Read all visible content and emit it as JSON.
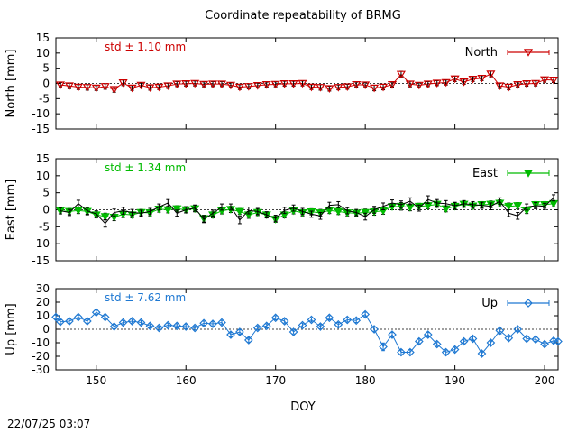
{
  "title": "Coordinate repeatability of BRMG",
  "timestamp": "22/07/25 03:07",
  "xlabel": "DOY",
  "xlim": [
    145.5,
    201.5
  ],
  "xticks": [
    150,
    160,
    170,
    180,
    190,
    200
  ],
  "colors": {
    "north": "#cc0000",
    "east": "#00bb00",
    "up": "#1e78d2",
    "bars_ne": "#000000",
    "bars_up": "#1e78d2"
  },
  "chart_data": [
    {
      "type": "line",
      "name": "North",
      "ylabel": "North [mm]",
      "ylim": [
        -15,
        15
      ],
      "yticks": [
        -15,
        -10,
        -5,
        0,
        5,
        10,
        15
      ],
      "std_label": "std ± 1.10 mm",
      "legend": "North",
      "legend_position": "top-right",
      "marker": "triangle-down-open",
      "series": [
        {
          "x": [
            146,
            147,
            148,
            149,
            150,
            151,
            152,
            153,
            154,
            155,
            156,
            157,
            158,
            159,
            160,
            161,
            162,
            163,
            164,
            165,
            166,
            167,
            168,
            169,
            170,
            171,
            172,
            173,
            174,
            175,
            176,
            177,
            178,
            179,
            180,
            181,
            182,
            183,
            184,
            185,
            186,
            187,
            188,
            189,
            190,
            191,
            192,
            193,
            194,
            195,
            196,
            197,
            198,
            199,
            200,
            201
          ],
          "y": [
            -0.5,
            -0.8,
            -1.2,
            -1.3,
            -1.5,
            -1.0,
            -2.0,
            0.2,
            -1.5,
            -0.6,
            -1.4,
            -1.2,
            -0.8,
            -0.2,
            -0.1,
            0.0,
            -0.3,
            -0.2,
            -0.2,
            -0.6,
            -1.2,
            -1.0,
            -0.7,
            -0.4,
            -0.3,
            -0.1,
            -0.1,
            0.0,
            -1.2,
            -1.3,
            -1.7,
            -1.3,
            -1.1,
            -0.4,
            -0.5,
            -1.5,
            -1.2,
            -0.4,
            3.0,
            -0.2,
            -0.6,
            -0.2,
            0.1,
            0.3,
            1.5,
            0.5,
            1.4,
            1.7,
            3.1,
            -0.8,
            -1.2,
            -0.4,
            -0.1,
            0.0,
            1.2,
            1.1
          ],
          "err": [
            0.8,
            0.9,
            0.8,
            0.9,
            0.8,
            0.9,
            0.9,
            0.9,
            0.8,
            0.9,
            0.8,
            0.8,
            0.8,
            0.8,
            0.8,
            0.8,
            0.8,
            0.8,
            0.8,
            0.8,
            0.8,
            0.8,
            0.8,
            0.8,
            0.8,
            0.8,
            0.8,
            0.8,
            0.8,
            0.9,
            0.8,
            0.8,
            0.8,
            0.8,
            0.8,
            0.9,
            0.9,
            0.8,
            1.0,
            0.9,
            0.8,
            0.8,
            0.8,
            0.8,
            0.9,
            0.8,
            0.8,
            0.8,
            0.9,
            0.9,
            0.9,
            0.8,
            0.8,
            0.8,
            0.8,
            0.8
          ]
        }
      ]
    },
    {
      "type": "line",
      "name": "East",
      "ylabel": "East [mm]",
      "ylim": [
        -15,
        15
      ],
      "yticks": [
        -15,
        -10,
        -5,
        0,
        5,
        10,
        15
      ],
      "std_label": "std ± 1.34 mm",
      "legend": "East",
      "legend_position": "top-right",
      "marker": "triangle-down-filled",
      "series": [
        {
          "x": [
            146,
            147,
            148,
            149,
            150,
            151,
            152,
            153,
            154,
            155,
            156,
            157,
            158,
            159,
            160,
            161,
            162,
            163,
            164,
            165,
            166,
            167,
            168,
            169,
            170,
            171,
            172,
            173,
            174,
            175,
            176,
            177,
            178,
            179,
            180,
            181,
            182,
            183,
            184,
            185,
            186,
            187,
            188,
            189,
            190,
            191,
            192,
            193,
            194,
            195,
            196,
            197,
            198,
            199,
            200,
            201
          ],
          "y": [
            -0.3,
            -0.5,
            -0.2,
            -0.5,
            -1.5,
            -2.0,
            -2.2,
            -1.3,
            -1.5,
            -0.8,
            -0.9,
            0.2,
            0.0,
            0.3,
            0.0,
            0.3,
            -2.6,
            -1.5,
            -0.3,
            0.1,
            -0.5,
            -1.5,
            -0.8,
            -1.5,
            -2.8,
            -1.5,
            -0.3,
            -0.9,
            -0.6,
            -0.9,
            -0.2,
            -0.5,
            -0.9,
            -1.0,
            -0.8,
            -0.6,
            -0.3,
            0.9,
            1.0,
            0.7,
            1.0,
            1.2,
            1.6,
            0.3,
            1.0,
            1.6,
            1.1,
            1.5,
            1.6,
            1.9,
            1.0,
            1.2,
            -0.2,
            1.5,
            1.5,
            1.8
          ],
          "err": [
            0.9,
            0.9,
            0.9,
            1.0,
            0.9,
            1.0,
            1.0,
            1.0,
            0.9,
            0.9,
            0.9,
            0.9,
            0.9,
            0.9,
            0.9,
            0.9,
            1.0,
            0.9,
            0.9,
            0.9,
            0.9,
            1.0,
            0.9,
            0.9,
            0.9,
            0.9,
            0.9,
            0.9,
            0.9,
            1.0,
            0.9,
            0.9,
            0.9,
            0.9,
            1.0,
            1.0,
            1.0,
            0.9,
            1.1,
            1.0,
            0.9,
            0.9,
            0.9,
            0.9,
            1.0,
            0.9,
            0.9,
            0.9,
            1.0,
            1.0,
            1.0,
            0.9,
            0.9,
            0.9,
            0.9,
            0.9
          ]
        },
        {
          "x": [
            146,
            147,
            148,
            149,
            150,
            151,
            152,
            153,
            154,
            155,
            156,
            157,
            158,
            159,
            160,
            161,
            162,
            163,
            164,
            165,
            166,
            167,
            168,
            169,
            170,
            171,
            172,
            173,
            174,
            175,
            176,
            177,
            178,
            179,
            180,
            181,
            182,
            183,
            184,
            185,
            186,
            187,
            188,
            189,
            190,
            191,
            192,
            193,
            194,
            195,
            196,
            197,
            198,
            199,
            200,
            201
          ],
          "y": [
            -0.3,
            -0.8,
            1.8,
            -0.3,
            -1.2,
            -4.0,
            -0.8,
            -0.3,
            -0.8,
            -1.0,
            -0.5,
            0.8,
            2.0,
            -1.0,
            0.0,
            0.5,
            -2.8,
            -1.0,
            0.8,
            0.8,
            -3.0,
            -0.2,
            -0.5,
            -1.5,
            -2.5,
            -0.2,
            0.5,
            -0.5,
            -1.3,
            -1.8,
            1.3,
            1.5,
            -0.3,
            -0.8,
            -2.0,
            0.0,
            1.0,
            2.0,
            1.5,
            2.5,
            0.5,
            3.0,
            2.0,
            1.8,
            1.2,
            1.8,
            1.5,
            1.3,
            1.0,
            2.5,
            -1.0,
            -1.8,
            0.8,
            1.2,
            1.0,
            3.5
          ],
          "err": [
            0.9,
            0.9,
            1.0,
            1.0,
            0.9,
            1.1,
            1.0,
            1.0,
            0.9,
            0.9,
            0.9,
            0.9,
            1.0,
            0.9,
            0.9,
            0.9,
            1.0,
            0.9,
            0.9,
            0.9,
            1.1,
            1.0,
            0.9,
            0.9,
            0.9,
            0.9,
            0.9,
            0.9,
            0.9,
            1.0,
            0.9,
            0.9,
            0.9,
            0.9,
            1.0,
            1.0,
            1.0,
            0.9,
            1.1,
            1.0,
            0.9,
            1.1,
            1.0,
            0.9,
            1.0,
            0.9,
            0.9,
            0.9,
            1.0,
            1.0,
            1.0,
            1.0,
            0.9,
            0.9,
            0.9,
            0.9
          ]
        }
      ]
    },
    {
      "type": "line",
      "name": "Up",
      "ylabel": "Up [mm]",
      "ylim": [
        -30,
        30
      ],
      "yticks": [
        -30,
        -20,
        -10,
        0,
        10,
        20,
        30
      ],
      "std_label": "std ± 7.62 mm",
      "legend": "Up",
      "legend_position": "top-right",
      "marker": "diamond-open",
      "series": [
        {
          "x": [
            145.5,
            146,
            147,
            148,
            149,
            150,
            151,
            152,
            153,
            154,
            155,
            156,
            157,
            158,
            159,
            160,
            161,
            162,
            163,
            164,
            165,
            166,
            167,
            168,
            169,
            170,
            171,
            172,
            173,
            174,
            175,
            176,
            177,
            178,
            179,
            180,
            181,
            182,
            183,
            184,
            185,
            186,
            187,
            188,
            189,
            190,
            191,
            192,
            193,
            194,
            195,
            196,
            197,
            198,
            199,
            200,
            201,
            201.5
          ],
          "y": [
            9.0,
            5.5,
            6.0,
            9.0,
            6.0,
            12.5,
            9.0,
            2.0,
            5.0,
            6.0,
            5.0,
            2.5,
            1.0,
            3.0,
            2.5,
            2.0,
            1.0,
            4.5,
            4.0,
            5.0,
            -4.0,
            -2.0,
            -8.0,
            1.0,
            2.5,
            8.5,
            6.0,
            -2.0,
            3.0,
            7.0,
            2.0,
            8.5,
            3.5,
            7.0,
            6.5,
            11.0,
            0.0,
            -13.0,
            -4.0,
            -17.0,
            -17.0,
            -9.0,
            -4.0,
            -11.0,
            -17.0,
            -15.0,
            -9.0,
            -7.0,
            -18.0,
            -10.0,
            -1.0,
            -6.5,
            0.0,
            -7.0,
            -7.5,
            -11.0,
            -8.5,
            -9.0
          ],
          "err": [
            1.5,
            1.5,
            1.5,
            1.5,
            1.5,
            1.6,
            1.5,
            1.6,
            1.5,
            1.5,
            1.5,
            1.5,
            1.5,
            1.5,
            1.5,
            1.5,
            1.5,
            1.5,
            1.5,
            1.5,
            1.6,
            1.6,
            1.6,
            1.5,
            1.5,
            1.5,
            1.5,
            1.5,
            1.5,
            1.5,
            1.6,
            1.5,
            1.5,
            1.6,
            1.5,
            1.6,
            1.6,
            2.8,
            1.6,
            1.8,
            1.8,
            1.7,
            1.6,
            1.6,
            1.6,
            1.6,
            1.6,
            1.6,
            1.7,
            1.6,
            2.5,
            1.6,
            1.6,
            1.6,
            1.6,
            1.6,
            1.6,
            1.6
          ]
        }
      ]
    }
  ]
}
